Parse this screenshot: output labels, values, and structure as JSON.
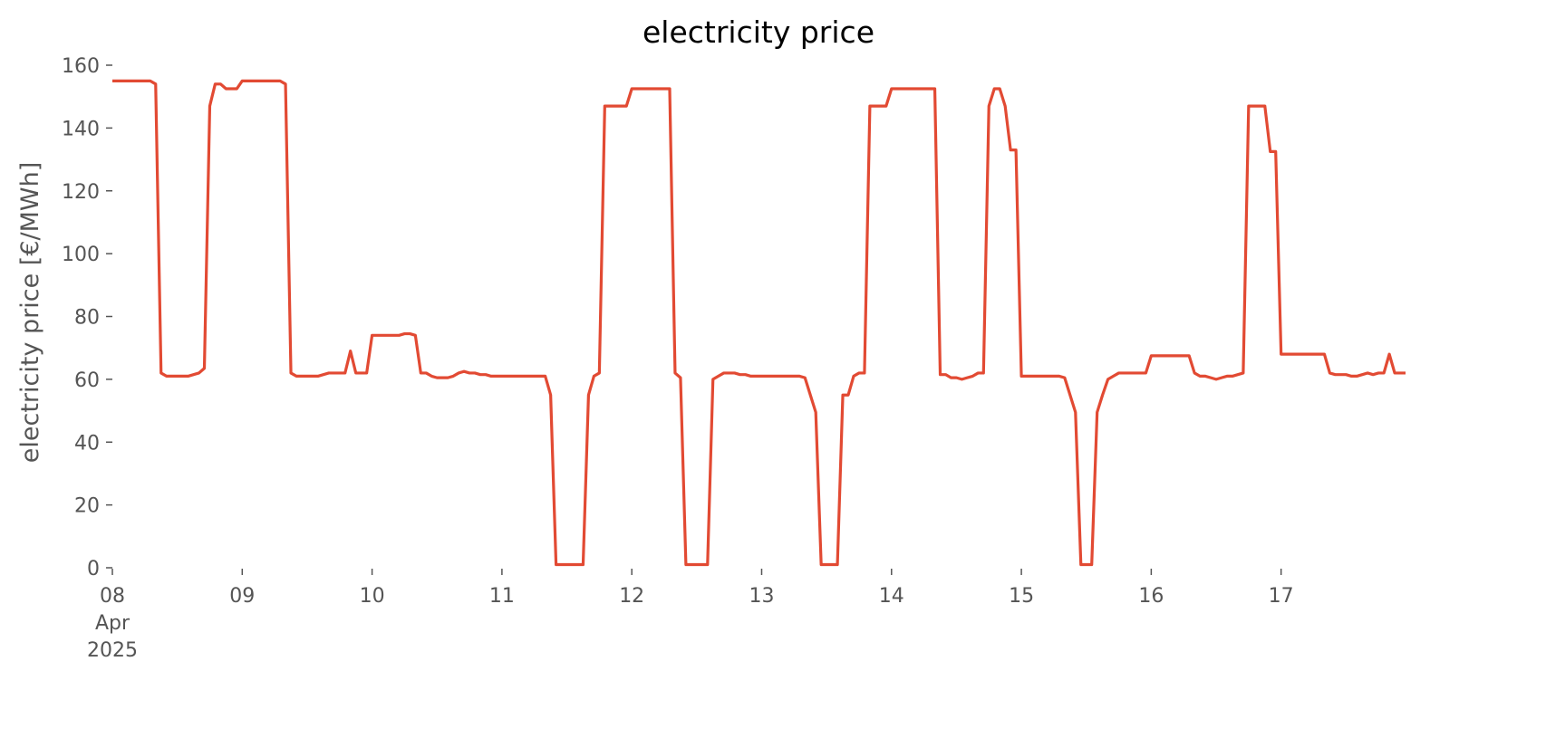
{
  "chart_data": {
    "type": "line",
    "title": "electricity price",
    "y_label": "electricity price [€/MWh]",
    "series": [
      {
        "color": "#e24a33",
        "values": [
          155,
          155,
          155,
          155,
          155,
          155,
          155,
          155,
          154,
          62,
          61,
          61,
          61,
          61,
          61,
          61.5,
          62,
          63.5,
          147,
          154,
          154,
          152.5,
          152.5,
          152.5,
          155,
          155,
          155,
          155,
          155,
          155,
          155,
          155,
          154,
          62,
          61,
          61,
          61,
          61,
          61,
          61.5,
          62,
          62,
          62,
          62,
          69,
          62,
          62,
          62,
          74,
          74,
          74,
          74,
          74,
          74,
          74.5,
          74.5,
          74,
          62,
          62,
          61,
          60.5,
          60.5,
          60.5,
          61,
          62,
          62.5,
          62,
          62,
          61.5,
          61.5,
          61,
          61,
          61,
          61,
          61,
          61,
          61,
          61,
          61,
          61,
          61,
          55,
          1,
          1,
          1,
          1,
          1,
          1,
          55,
          61,
          62,
          147,
          147,
          147,
          147,
          147,
          152.5,
          152.5,
          152.5,
          152.5,
          152.5,
          152.5,
          152.5,
          152.5,
          62,
          60.5,
          1,
          1,
          1,
          1,
          1,
          60,
          61,
          62,
          62,
          62,
          61.5,
          61.5,
          61,
          61,
          61,
          61,
          61,
          61,
          61,
          61,
          61,
          61,
          60.5,
          55,
          49.5,
          1,
          1,
          1,
          1,
          55,
          55,
          61,
          62,
          62,
          147,
          147,
          147,
          147,
          152.5,
          152.5,
          152.5,
          152.5,
          152.5,
          152.5,
          152.5,
          152.5,
          152.5,
          61.5,
          61.5,
          60.5,
          60.5,
          60,
          60.5,
          61,
          62,
          62,
          147,
          152.5,
          152.5,
          147,
          133,
          133,
          61,
          61,
          61,
          61,
          61,
          61,
          61,
          61,
          60.5,
          55,
          49.5,
          1,
          1,
          1,
          49.5,
          55,
          60,
          61,
          62,
          62,
          62,
          62,
          62,
          62,
          67.5,
          67.5,
          67.5,
          67.5,
          67.5,
          67.5,
          67.5,
          67.5,
          62,
          61,
          61,
          60.5,
          60,
          60.5,
          61,
          61,
          61.5,
          62,
          147,
          147,
          147,
          147,
          132.5,
          132.5,
          68,
          68,
          68,
          68,
          68,
          68,
          68,
          68,
          68,
          62,
          61.5,
          61.5,
          61.5,
          61,
          61,
          61.5,
          62,
          61.5,
          62,
          62,
          68,
          62,
          62,
          62
        ]
      }
    ],
    "xlim": [
      0,
      239
    ],
    "xticks": [
      {
        "value": 0,
        "label": "08\nApr\n2025"
      },
      {
        "value": 24,
        "label": "09"
      },
      {
        "value": 48,
        "label": "10"
      },
      {
        "value": 72,
        "label": "11"
      },
      {
        "value": 96,
        "label": "12"
      },
      {
        "value": 120,
        "label": "13"
      },
      {
        "value": 144,
        "label": "14"
      },
      {
        "value": 168,
        "label": "15"
      },
      {
        "value": 192,
        "label": "16"
      },
      {
        "value": 216,
        "label": "17"
      }
    ],
    "ylim": [
      0,
      160
    ],
    "yticks": [
      0,
      20,
      40,
      60,
      80,
      100,
      120,
      140,
      160
    ],
    "grid": false
  }
}
